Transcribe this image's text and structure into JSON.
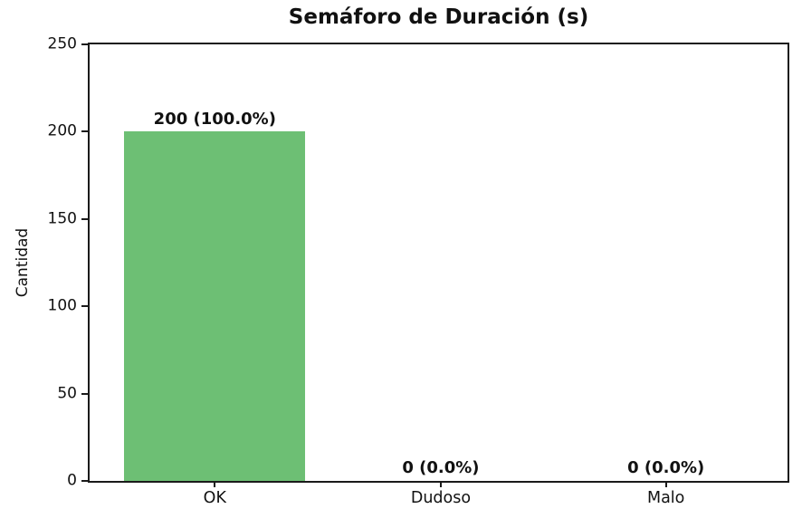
{
  "chart_data": {
    "type": "bar",
    "title": "Semáforo de Duración (s)",
    "xlabel": "",
    "ylabel": "Cantidad",
    "categories": [
      "OK",
      "Dudoso",
      "Malo"
    ],
    "values": [
      200,
      0,
      0
    ],
    "bar_labels": [
      "200 (100.0%)",
      "0 (0.0%)",
      "0 (0.0%)"
    ],
    "bar_color": "#6dbf74",
    "ylim": [
      0,
      250
    ],
    "yticks": [
      0,
      50,
      100,
      150,
      200,
      250
    ],
    "ytick_labels": [
      "0",
      "50",
      "100",
      "150",
      "200",
      "250"
    ],
    "grid": false,
    "legend_position": "none",
    "spine_color": "#1a1a1a",
    "background_color": "#ffffff"
  }
}
